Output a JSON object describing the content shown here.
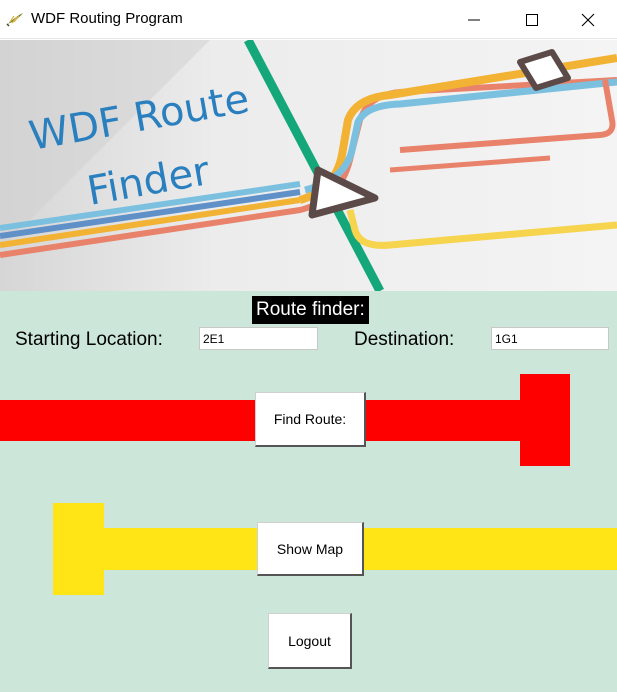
{
  "window": {
    "title": "WDF Routing Program",
    "icon": "feather-app-icon",
    "controls": [
      "minimize-icon",
      "maximize-icon",
      "close-icon"
    ]
  },
  "banner": {
    "heading_line1": "WDF Route",
    "heading_line2": "Finder",
    "text_color": "#2a7fbf"
  },
  "form": {
    "section_title": "Route finder:",
    "starting_location_label": "Starting Location:",
    "starting_location_value": "2E1",
    "destination_label": "Destination:",
    "destination_value": "1G1"
  },
  "buttons": {
    "find_route": "Find Route:",
    "show_map": "Show Map",
    "logout": "Logout"
  },
  "colors": {
    "background": "#cce6da",
    "red_line": "#ff0000",
    "yellow_line": "#ffe516"
  }
}
